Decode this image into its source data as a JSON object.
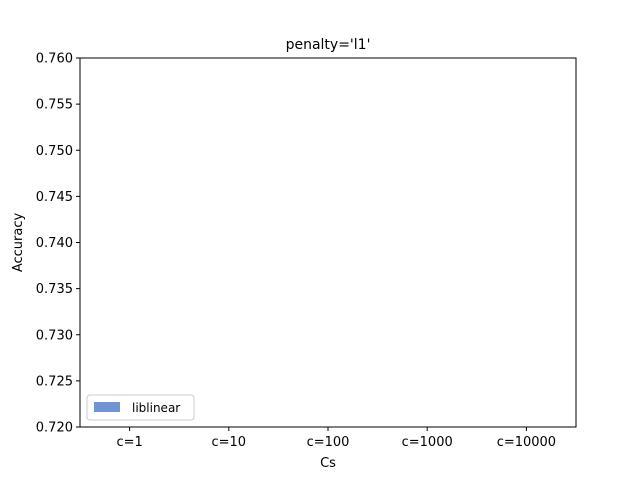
{
  "chart_data": {
    "type": "bar",
    "title": "penalty='l1'",
    "xlabel": "Cs",
    "ylabel": "Accuracy",
    "categories": [
      "c=1",
      "c=10",
      "c=100",
      "c=1000",
      "c=10000"
    ],
    "ylim": [
      0.72,
      0.76
    ],
    "yticks": [
      "0.720",
      "0.725",
      "0.730",
      "0.735",
      "0.740",
      "0.745",
      "0.750",
      "0.755",
      "0.760"
    ],
    "series": [
      {
        "name": "liblinear",
        "color": "#7093d6",
        "values": [
          null,
          null,
          null,
          null,
          null
        ]
      }
    ],
    "grid": false,
    "legend_position": "lower-left"
  }
}
